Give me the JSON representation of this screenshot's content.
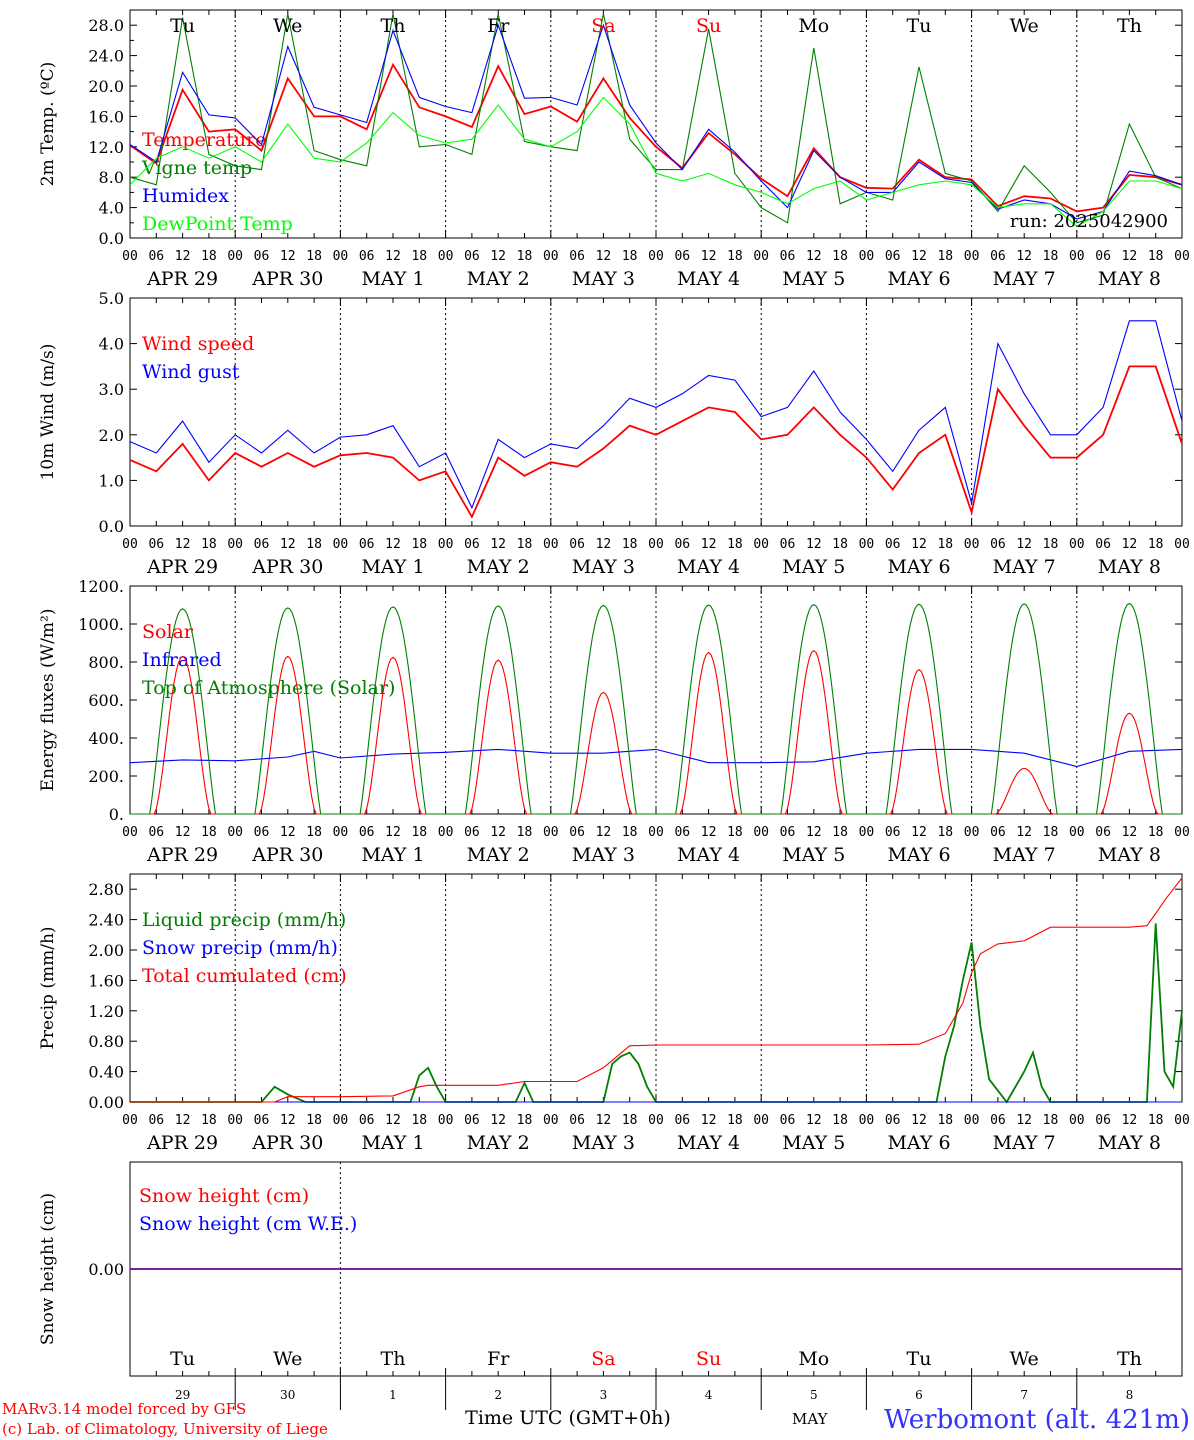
{
  "figure": {
    "day_names": [
      "Tu",
      "We",
      "Th",
      "Fr",
      "Sa",
      "Su",
      "Mo",
      "Tu",
      "We",
      "Th"
    ],
    "weekend_color": "#ff0000",
    "weekend_index": [
      4,
      5
    ],
    "date_labels": [
      "APR 29",
      "APR 30",
      "MAY  1",
      "MAY  2",
      "MAY  3",
      "MAY  4",
      "MAY  5",
      "MAY  6",
      "MAY  7",
      "MAY  8"
    ],
    "hour_ticks": [
      "00",
      "06",
      "12",
      "18"
    ],
    "hour_tick_end": "00",
    "run_label": "run: 2025042900",
    "bottom_day_numbers": [
      "29",
      "30",
      "1",
      "2",
      "3",
      "4",
      "5",
      "6",
      "7",
      "8"
    ],
    "bottom_month": "MAY",
    "xlabel": "Time UTC (GMT+0h)",
    "credit_line1": "MARv3.14 model forced by GFS",
    "credit_line2": "(c) Lab. of Climatology, University of Liege",
    "station": "Werbomont (alt. 421m)"
  },
  "chart_data": [
    {
      "type": "line",
      "ylabel": "2m Temp. (ºC)",
      "ylim": [
        0,
        30
      ],
      "yticks": [
        "0.0",
        "4.0",
        "8.0",
        "12.0",
        "16.0",
        "20.0",
        "24.0",
        "28.0"
      ],
      "x_unit": "hours since APR 29 00 UTC",
      "series": [
        {
          "name": "Temperature",
          "color": "#ff0000",
          "x": [
            0,
            6,
            12,
            18,
            24,
            30,
            36,
            42,
            48,
            54,
            60,
            66,
            72,
            78,
            84,
            90,
            96,
            102,
            108,
            114,
            120,
            126,
            132,
            138,
            144,
            150,
            156,
            162,
            168,
            174,
            180,
            186,
            192,
            198,
            204,
            210,
            216,
            222,
            228,
            234,
            240
          ],
          "values": [
            12.2,
            9.8,
            19.5,
            14.0,
            14.3,
            11.5,
            21.0,
            16.0,
            16.0,
            14.3,
            22.8,
            17.2,
            16.0,
            14.6,
            22.6,
            16.3,
            17.3,
            15.3,
            21.0,
            15.8,
            12.0,
            9.2,
            13.8,
            11.0,
            7.8,
            5.5,
            11.8,
            8.0,
            6.6,
            6.5,
            10.3,
            8.0,
            7.7,
            4.2,
            5.5,
            5.2,
            3.5,
            4.0,
            8.3,
            8.0,
            7.0
          ]
        },
        {
          "name": "Vigne temp",
          "color": "#008000",
          "x": [
            0,
            6,
            12,
            18,
            24,
            30,
            36,
            42,
            48,
            54,
            60,
            66,
            72,
            78,
            84,
            90,
            96,
            102,
            108,
            114,
            120,
            126,
            132,
            138,
            144,
            150,
            156,
            162,
            168,
            174,
            180,
            186,
            192,
            198,
            204,
            210,
            216,
            222,
            228,
            234,
            240
          ],
          "values": [
            8.0,
            7.0,
            29.0,
            11.0,
            9.5,
            9.0,
            29.5,
            11.5,
            10.3,
            9.5,
            29.5,
            12.0,
            12.3,
            11.0,
            29.5,
            12.7,
            12.0,
            11.5,
            29.5,
            13.0,
            9.0,
            9.0,
            27.5,
            8.5,
            4.0,
            2.0,
            25.0,
            4.5,
            6.0,
            5.0,
            22.5,
            8.5,
            7.5,
            3.5,
            9.5,
            6.0,
            2.0,
            3.0,
            15.0,
            8.0,
            6.5
          ]
        },
        {
          "name": "Humidex",
          "color": "#0000ff",
          "x": [
            0,
            6,
            12,
            18,
            24,
            30,
            36,
            42,
            48,
            54,
            60,
            66,
            72,
            78,
            84,
            90,
            96,
            102,
            108,
            114,
            120,
            126,
            132,
            138,
            144,
            150,
            156,
            162,
            168,
            174,
            180,
            186,
            192,
            198,
            204,
            210,
            216,
            222,
            228,
            234,
            240
          ],
          "values": [
            12.3,
            10.0,
            21.8,
            16.2,
            15.8,
            12.3,
            25.2,
            17.2,
            16.2,
            15.2,
            27.3,
            18.5,
            17.3,
            16.5,
            28.0,
            18.4,
            18.5,
            17.5,
            28.0,
            17.5,
            12.5,
            9.0,
            14.3,
            11.3,
            7.5,
            4.0,
            11.5,
            8.0,
            6.0,
            6.0,
            10.0,
            7.8,
            7.3,
            3.8,
            5.0,
            4.5,
            2.5,
            3.5,
            8.8,
            8.2,
            7.0
          ]
        },
        {
          "name": "DewPoint Temp",
          "color": "#00ff00",
          "x": [
            0,
            6,
            12,
            18,
            24,
            30,
            36,
            42,
            48,
            54,
            60,
            66,
            72,
            78,
            84,
            90,
            96,
            102,
            108,
            114,
            120,
            126,
            132,
            138,
            144,
            150,
            156,
            162,
            168,
            174,
            180,
            186,
            192,
            198,
            204,
            210,
            216,
            222,
            228,
            234,
            240
          ],
          "values": [
            7.0,
            10.5,
            12.0,
            10.5,
            12.0,
            10.0,
            15.0,
            10.5,
            10.0,
            12.5,
            16.5,
            13.5,
            12.5,
            13.0,
            17.5,
            13.0,
            12.0,
            14.0,
            18.5,
            15.0,
            8.5,
            7.5,
            8.5,
            7.0,
            6.0,
            4.5,
            6.5,
            7.5,
            5.0,
            6.0,
            7.0,
            7.5,
            7.0,
            4.0,
            4.5,
            4.5,
            1.5,
            3.5,
            7.5,
            7.5,
            6.5
          ]
        }
      ]
    },
    {
      "type": "line",
      "ylabel": "10m Wind (m/s)",
      "ylim": [
        0,
        5
      ],
      "yticks": [
        "0.0",
        "1.0",
        "2.0",
        "3.0",
        "4.0",
        "5.0"
      ],
      "x_unit": "hours since APR 29 00 UTC",
      "series": [
        {
          "name": "Wind speed",
          "color": "#ff0000",
          "x": [
            0,
            6,
            12,
            18,
            24,
            30,
            36,
            42,
            48,
            54,
            60,
            66,
            72,
            78,
            84,
            90,
            96,
            102,
            108,
            114,
            120,
            126,
            132,
            138,
            144,
            150,
            156,
            162,
            168,
            174,
            180,
            186,
            192,
            198,
            204,
            210,
            216,
            222,
            228,
            234,
            240
          ],
          "values": [
            1.45,
            1.2,
            1.8,
            1.0,
            1.6,
            1.3,
            1.6,
            1.3,
            1.55,
            1.6,
            1.5,
            1.0,
            1.2,
            0.2,
            1.5,
            1.1,
            1.4,
            1.3,
            1.7,
            2.2,
            2.0,
            2.3,
            2.6,
            2.5,
            1.9,
            2.0,
            2.6,
            2.0,
            1.5,
            0.8,
            1.6,
            2.0,
            0.3,
            3.0,
            2.2,
            1.5,
            1.5,
            2.0,
            3.5,
            3.5,
            1.8
          ]
        },
        {
          "name": "Wind gust",
          "color": "#0000ff",
          "x": [
            0,
            6,
            12,
            18,
            24,
            30,
            36,
            42,
            48,
            54,
            60,
            66,
            72,
            78,
            84,
            90,
            96,
            102,
            108,
            114,
            120,
            126,
            132,
            138,
            144,
            150,
            156,
            162,
            168,
            174,
            180,
            186,
            192,
            198,
            204,
            210,
            216,
            222,
            228,
            234,
            240
          ],
          "values": [
            1.85,
            1.6,
            2.3,
            1.4,
            2.0,
            1.6,
            2.1,
            1.6,
            1.95,
            2.0,
            2.2,
            1.3,
            1.6,
            0.4,
            1.9,
            1.5,
            1.8,
            1.7,
            2.2,
            2.8,
            2.6,
            2.9,
            3.3,
            3.2,
            2.4,
            2.6,
            3.4,
            2.5,
            1.9,
            1.2,
            2.1,
            2.6,
            0.5,
            4.0,
            2.9,
            2.0,
            2.0,
            2.6,
            4.5,
            4.5,
            2.3
          ]
        }
      ]
    },
    {
      "type": "line",
      "ylabel": "Energy fluxes (W/m²)",
      "ylim": [
        0,
        1200
      ],
      "yticks": [
        "0.",
        "200.",
        "400.",
        "600.",
        "800.",
        "1000.",
        "1200."
      ],
      "x_unit": "hours since APR 29 00 UTC",
      "daily_peaks": {
        "Solar": [
          830,
          830,
          825,
          810,
          640,
          850,
          860,
          760,
          240,
          530
        ],
        "Top of Atmosphere (Solar)": [
          1080,
          1085,
          1090,
          1095,
          1098,
          1100,
          1102,
          1104,
          1106,
          1108
        ]
      },
      "series": [
        {
          "name": "Solar",
          "color": "#ff0000"
        },
        {
          "name": "Infrared",
          "color": "#0000ff",
          "x": [
            0,
            12,
            24,
            36,
            42,
            48,
            60,
            72,
            84,
            96,
            108,
            120,
            132,
            144,
            156,
            168,
            180,
            192,
            204,
            216,
            228,
            240
          ],
          "values": [
            270,
            285,
            280,
            300,
            330,
            295,
            315,
            325,
            340,
            320,
            320,
            340,
            270,
            270,
            275,
            320,
            340,
            340,
            320,
            250,
            330,
            340
          ]
        },
        {
          "name": "Top of Atmosphere (Solar)",
          "color": "#008000"
        }
      ]
    },
    {
      "type": "line",
      "ylabel": "Precip (mm/h)",
      "ylim": [
        0,
        3.0
      ],
      "yticks": [
        "0.00",
        "0.40",
        "0.80",
        "1.20",
        "1.60",
        "2.00",
        "2.40",
        "2.80"
      ],
      "x_unit": "hours since APR 29 00 UTC",
      "series": [
        {
          "name": "Liquid precip (mm/h)",
          "color": "#008000",
          "x": [
            0,
            30,
            33,
            36,
            40,
            44,
            64,
            66,
            68,
            70,
            72,
            88,
            90,
            92,
            108,
            110,
            112,
            114,
            116,
            118,
            120,
            184,
            186,
            188,
            190,
            192,
            194,
            196,
            200,
            204,
            206,
            208,
            210,
            232,
            234,
            236,
            238,
            240
          ],
          "values": [
            0,
            0,
            0.2,
            0.1,
            0,
            0,
            0,
            0.35,
            0.45,
            0.2,
            0,
            0,
            0.25,
            0,
            0,
            0.5,
            0.6,
            0.65,
            0.5,
            0.2,
            0,
            0,
            0.6,
            1.0,
            1.6,
            2.1,
            1.0,
            0.3,
            0,
            0.4,
            0.65,
            0.2,
            0,
            0,
            2.35,
            0.4,
            0.2,
            1.2
          ]
        },
        {
          "name": "Snow precip (mm/h)",
          "color": "#0000ff",
          "x": [
            0,
            240
          ],
          "values": [
            0,
            0
          ]
        },
        {
          "name": "Total cumulated (cm)",
          "color": "#ff0000",
          "x": [
            0,
            33,
            36,
            48,
            60,
            66,
            68,
            72,
            84,
            90,
            96,
            102,
            108,
            114,
            120,
            144,
            168,
            180,
            186,
            190,
            192,
            194,
            198,
            204,
            210,
            222,
            228,
            232,
            234,
            236,
            240
          ],
          "values": [
            0,
            0,
            0.07,
            0.07,
            0.08,
            0.2,
            0.22,
            0.22,
            0.22,
            0.27,
            0.27,
            0.27,
            0.45,
            0.74,
            0.75,
            0.75,
            0.75,
            0.76,
            0.9,
            1.3,
            1.7,
            1.95,
            2.08,
            2.12,
            2.3,
            2.3,
            2.3,
            2.32,
            2.48,
            2.65,
            2.95
          ]
        }
      ]
    },
    {
      "type": "line",
      "ylabel": "Snow height (cm)",
      "ylim": [
        -1,
        1
      ],
      "yticks": [
        "0.00"
      ],
      "x_unit": "hours since APR 29 00 UTC",
      "series": [
        {
          "name": "Snow height (cm)",
          "color": "#ff0000",
          "x": [
            0,
            240
          ],
          "values": [
            0,
            0
          ]
        },
        {
          "name": "Snow height (cm W.E.)",
          "color": "#0000ff",
          "x": [
            0,
            240
          ],
          "values": [
            0,
            0
          ]
        }
      ]
    }
  ]
}
